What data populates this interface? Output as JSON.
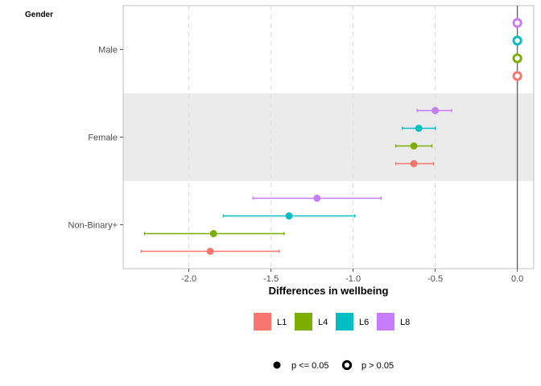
{
  "chart_data": {
    "type": "forest",
    "group_title": "Gender",
    "categories": [
      "Male",
      "Female",
      "Non-Binary+"
    ],
    "xlabel": "Differences in wellbeing",
    "ylabel": "",
    "xlim": [
      -2.4,
      0.1
    ],
    "xticks": [
      -2.0,
      -1.5,
      -1.0,
      -0.5,
      0.0
    ],
    "xtick_labels": [
      "-2.0",
      "-1.5",
      "-1.0",
      "-0.5",
      "0.0"
    ],
    "grid": true,
    "reference_line": 0.0,
    "series": [
      {
        "name": "L1",
        "color": "#F8766D",
        "points": [
          {
            "category": "Male",
            "estimate": 0.0,
            "lower": 0.0,
            "upper": 0.0,
            "significant": false
          },
          {
            "category": "Female",
            "estimate": -0.63,
            "lower": -0.74,
            "upper": -0.51,
            "significant": true
          },
          {
            "category": "Non-Binary+",
            "estimate": -1.87,
            "lower": -2.29,
            "upper": -1.45,
            "significant": true
          }
        ]
      },
      {
        "name": "L4",
        "color": "#7CAE00",
        "points": [
          {
            "category": "Male",
            "estimate": 0.0,
            "lower": 0.0,
            "upper": 0.0,
            "significant": false
          },
          {
            "category": "Female",
            "estimate": -0.63,
            "lower": -0.74,
            "upper": -0.52,
            "significant": true
          },
          {
            "category": "Non-Binary+",
            "estimate": -1.85,
            "lower": -2.27,
            "upper": -1.42,
            "significant": true
          }
        ]
      },
      {
        "name": "L6",
        "color": "#00BFC4",
        "points": [
          {
            "category": "Male",
            "estimate": 0.0,
            "lower": 0.0,
            "upper": 0.0,
            "significant": false
          },
          {
            "category": "Female",
            "estimate": -0.6,
            "lower": -0.7,
            "upper": -0.5,
            "significant": true
          },
          {
            "category": "Non-Binary+",
            "estimate": -1.39,
            "lower": -1.79,
            "upper": -0.99,
            "significant": true
          }
        ]
      },
      {
        "name": "L8",
        "color": "#C77CFF",
        "points": [
          {
            "category": "Male",
            "estimate": 0.0,
            "lower": 0.0,
            "upper": 0.0,
            "significant": false
          },
          {
            "category": "Female",
            "estimate": -0.5,
            "lower": -0.61,
            "upper": -0.4,
            "significant": true
          },
          {
            "category": "Non-Binary+",
            "estimate": -1.22,
            "lower": -1.61,
            "upper": -0.83,
            "significant": true
          }
        ]
      }
    ],
    "legend": {
      "placement": "bottom",
      "series_labels": [
        "L1",
        "L4",
        "L6",
        "L8"
      ],
      "shape_labels": [
        "p <= 0.05",
        "p > 0.05"
      ]
    }
  }
}
